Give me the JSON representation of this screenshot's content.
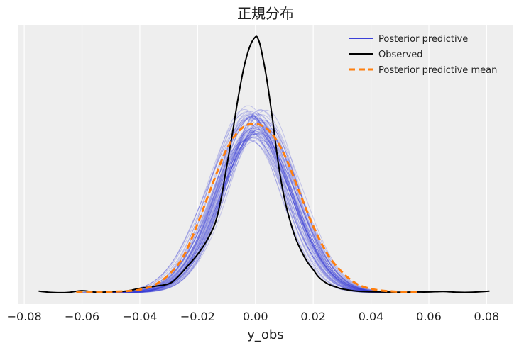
{
  "chart_data": {
    "type": "line",
    "title": "正規分布",
    "xlabel": "y_obs",
    "ylabel": "",
    "xlim": [
      -0.082,
      0.089
    ],
    "ylim": [
      0,
      1.0
    ],
    "x_ticks": [
      -0.08,
      -0.06,
      -0.04,
      -0.02,
      0.0,
      0.02,
      0.04,
      0.06,
      0.08
    ],
    "x_tick_labels": [
      "−0.08",
      "−0.06",
      "−0.04",
      "−0.02",
      "0.00",
      "0.02",
      "0.04",
      "0.06",
      "0.08"
    ],
    "y_ticks_shown": false,
    "grid": true,
    "legend": {
      "placement": "top-right",
      "entries": [
        {
          "label": "Posterior predictive",
          "color": "#3b3fd8",
          "style": "solid"
        },
        {
          "label": "Observed",
          "color": "#000000",
          "style": "solid"
        },
        {
          "label": "Posterior predictive mean",
          "color": "#ff7f0e",
          "style": "dashed"
        }
      ]
    },
    "series": [
      {
        "name": "Observed",
        "color": "#000000",
        "style": "solid",
        "x": [
          -0.075,
          -0.07,
          -0.065,
          -0.06,
          -0.055,
          -0.05,
          -0.045,
          -0.04,
          -0.035,
          -0.03,
          -0.027,
          -0.023,
          -0.02,
          -0.017,
          -0.014,
          -0.012,
          -0.01,
          -0.008,
          -0.006,
          -0.004,
          -0.002,
          0.0,
          0.001,
          0.002,
          0.004,
          0.006,
          0.008,
          0.01,
          0.012,
          0.014,
          0.016,
          0.018,
          0.02,
          0.022,
          0.025,
          0.028,
          0.03,
          0.035,
          0.04,
          0.045,
          0.05,
          0.055,
          0.06,
          0.065,
          0.07,
          0.075,
          0.081
        ],
        "y": [
          0.006,
          0.001,
          0.001,
          0.008,
          0.002,
          0.004,
          0.006,
          0.017,
          0.025,
          0.035,
          0.06,
          0.11,
          0.15,
          0.2,
          0.27,
          0.36,
          0.49,
          0.62,
          0.76,
          0.88,
          0.96,
          1.0,
          0.99,
          0.95,
          0.83,
          0.67,
          0.5,
          0.37,
          0.28,
          0.21,
          0.16,
          0.12,
          0.09,
          0.06,
          0.035,
          0.022,
          0.015,
          0.006,
          0.004,
          0.003,
          0.002,
          0.003,
          0.003,
          0.005,
          0.002,
          0.002,
          0.006
        ]
      },
      {
        "name": "Posterior predictive mean",
        "color": "#ff7f0e",
        "style": "dashed",
        "x": [
          -0.062,
          -0.055,
          -0.05,
          -0.045,
          -0.04,
          -0.035,
          -0.03,
          -0.025,
          -0.02,
          -0.015,
          -0.01,
          -0.005,
          0.0,
          0.005,
          0.01,
          0.015,
          0.02,
          0.025,
          0.03,
          0.035,
          0.04,
          0.045,
          0.05,
          0.057
        ],
        "y": [
          0.002,
          0.003,
          0.004,
          0.006,
          0.012,
          0.03,
          0.07,
          0.14,
          0.27,
          0.42,
          0.56,
          0.64,
          0.66,
          0.63,
          0.54,
          0.4,
          0.26,
          0.15,
          0.08,
          0.035,
          0.015,
          0.007,
          0.004,
          0.002
        ]
      }
    ],
    "posterior_predictive_curves": {
      "name": "Posterior predictive",
      "color": "#3b3fd8",
      "count": 60,
      "center_range": [
        -0.003,
        0.003
      ],
      "peak_range": [
        0.6,
        0.72
      ]
    }
  }
}
